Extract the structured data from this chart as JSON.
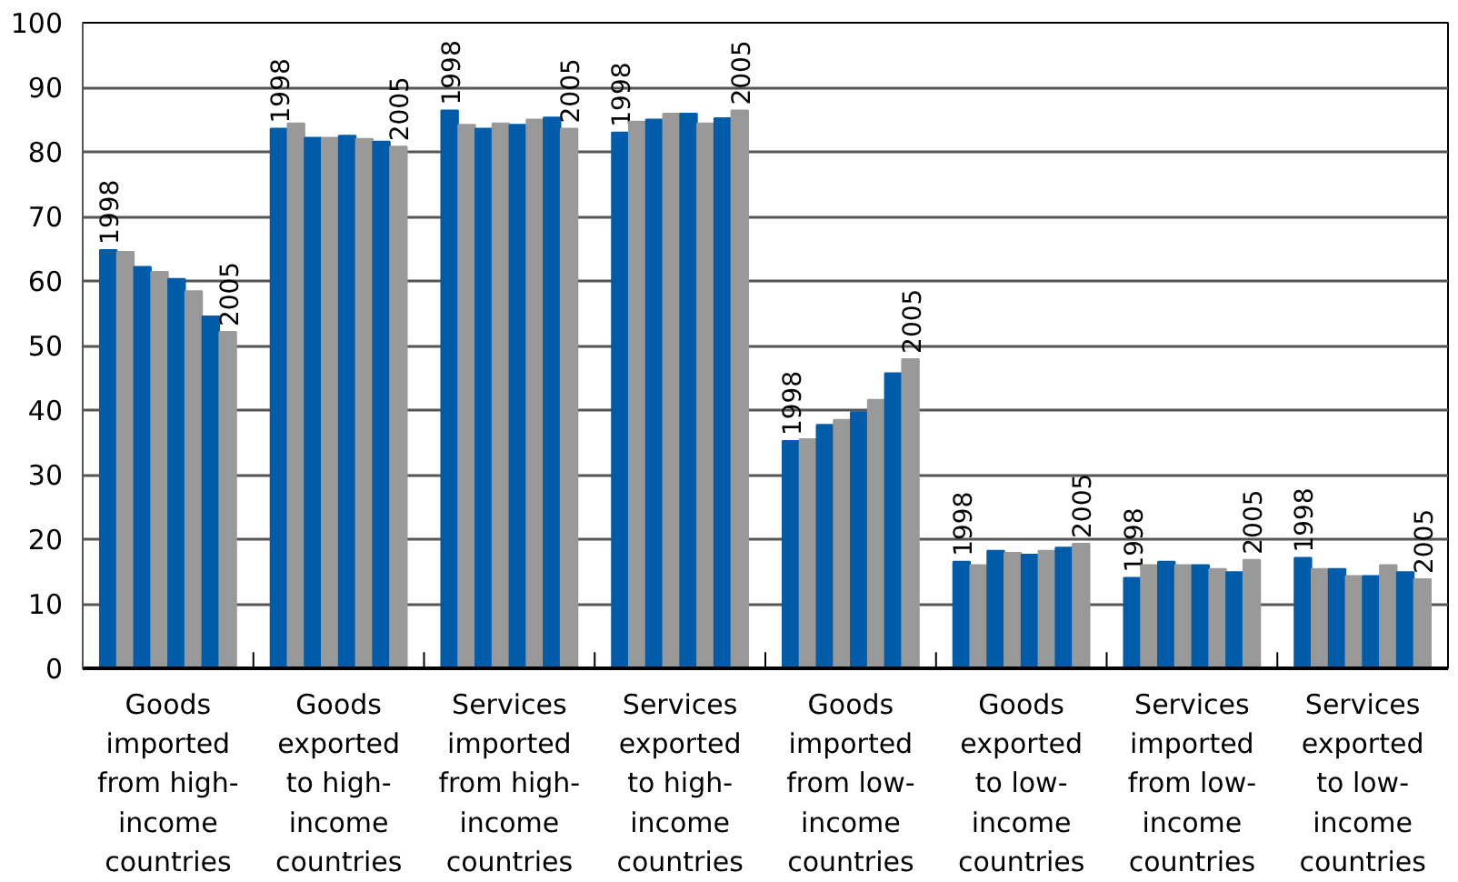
{
  "chart_data": {
    "type": "bar",
    "categories": [
      "Goods\nimported\nfrom high-\nincome\ncountries",
      "Goods\nexported\nto high-\nincome\ncountries",
      "Services\nimported\nfrom high-\nincome\ncountries",
      "Services\nexported\nto high-\nincome\ncountries",
      "Goods\nimported\nfrom low-\nincome\ncountries",
      "Goods\nexported\nto low-\nincome\ncountries",
      "Services\nimported\nfrom low-\nincome\ncountries",
      "Services\nexported\nto low-\nincome\ncountries"
    ],
    "series": [
      {
        "name": "1998",
        "color": "#005ca9",
        "values": [
          64.8,
          83.6,
          86.4,
          83.0,
          35.2,
          16.5,
          14.0,
          17.1
        ]
      },
      {
        "color": "#999999",
        "values": [
          64.5,
          84.4,
          84.2,
          84.7,
          35.5,
          16.0,
          16.0,
          15.4
        ]
      },
      {
        "color": "#005ca9",
        "values": [
          62.2,
          82.2,
          83.6,
          85.0,
          37.7,
          18.2,
          16.5,
          15.4
        ]
      },
      {
        "color": "#999999",
        "values": [
          61.4,
          82.2,
          84.4,
          85.9,
          38.5,
          17.9,
          16.0,
          14.3
        ]
      },
      {
        "color": "#005ca9",
        "values": [
          60.3,
          82.5,
          84.2,
          85.9,
          39.7,
          17.6,
          16.0,
          14.3
        ]
      },
      {
        "color": "#999999",
        "values": [
          58.4,
          82.0,
          85.0,
          84.4,
          41.6,
          18.2,
          15.4,
          16.0
        ]
      },
      {
        "color": "#005ca9",
        "values": [
          54.5,
          81.6,
          85.3,
          85.2,
          45.7,
          18.7,
          14.9,
          14.9
        ]
      },
      {
        "name": "2005",
        "color": "#999999",
        "values": [
          52.1,
          80.8,
          83.6,
          86.4,
          47.9,
          19.3,
          16.8,
          13.8
        ]
      }
    ],
    "ylim": [
      0,
      100
    ],
    "yticks": [
      0,
      10,
      20,
      30,
      40,
      50,
      60,
      70,
      80,
      90,
      100
    ],
    "grid": "y"
  }
}
